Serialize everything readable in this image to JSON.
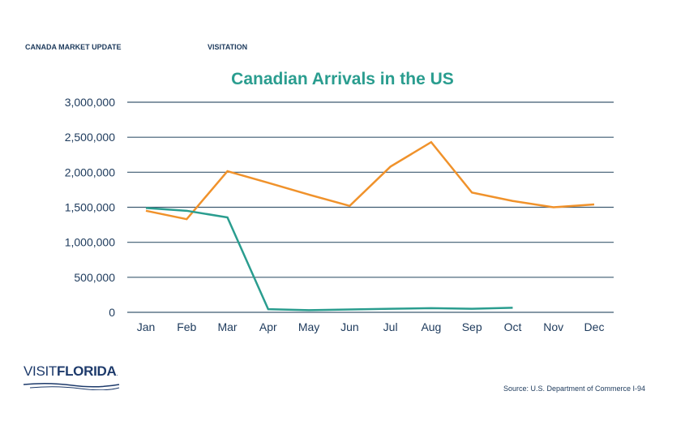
{
  "header": {
    "left": "CANADA MARKET UPDATE",
    "right": "VISITATION"
  },
  "logo": {
    "text_light": "VISIT",
    "text_bold": "FLORIDA",
    "mark": "."
  },
  "source": "Source: U.S. Department of Commerce I-94",
  "chart_data": {
    "type": "line",
    "title": "Canadian Arrivals in the US",
    "categories": [
      "Jan",
      "Feb",
      "Mar",
      "Apr",
      "May",
      "Jun",
      "Jul",
      "Aug",
      "Sep",
      "Oct",
      "Nov",
      "Dec"
    ],
    "ylim": [
      0,
      3000000
    ],
    "yticks": [
      0,
      500000,
      1000000,
      1500000,
      2000000,
      2500000,
      3000000
    ],
    "ytick_labels": [
      "0",
      "500,000",
      "1,000,000",
      "1,500,000",
      "2,000,000",
      "2,500,000",
      "3,000,000"
    ],
    "grid": true,
    "legend": "none",
    "series": [
      {
        "color": "#f0922b",
        "values": [
          1450000,
          1330000,
          2015000,
          1850000,
          1680000,
          1520000,
          2080000,
          2430000,
          1710000,
          1590000,
          1500000,
          1540000
        ]
      },
      {
        "color": "#2a9d8f",
        "values": [
          1490000,
          1450000,
          1355000,
          45000,
          30000,
          40000,
          50000,
          60000,
          50000,
          65000,
          null,
          null
        ]
      }
    ]
  }
}
